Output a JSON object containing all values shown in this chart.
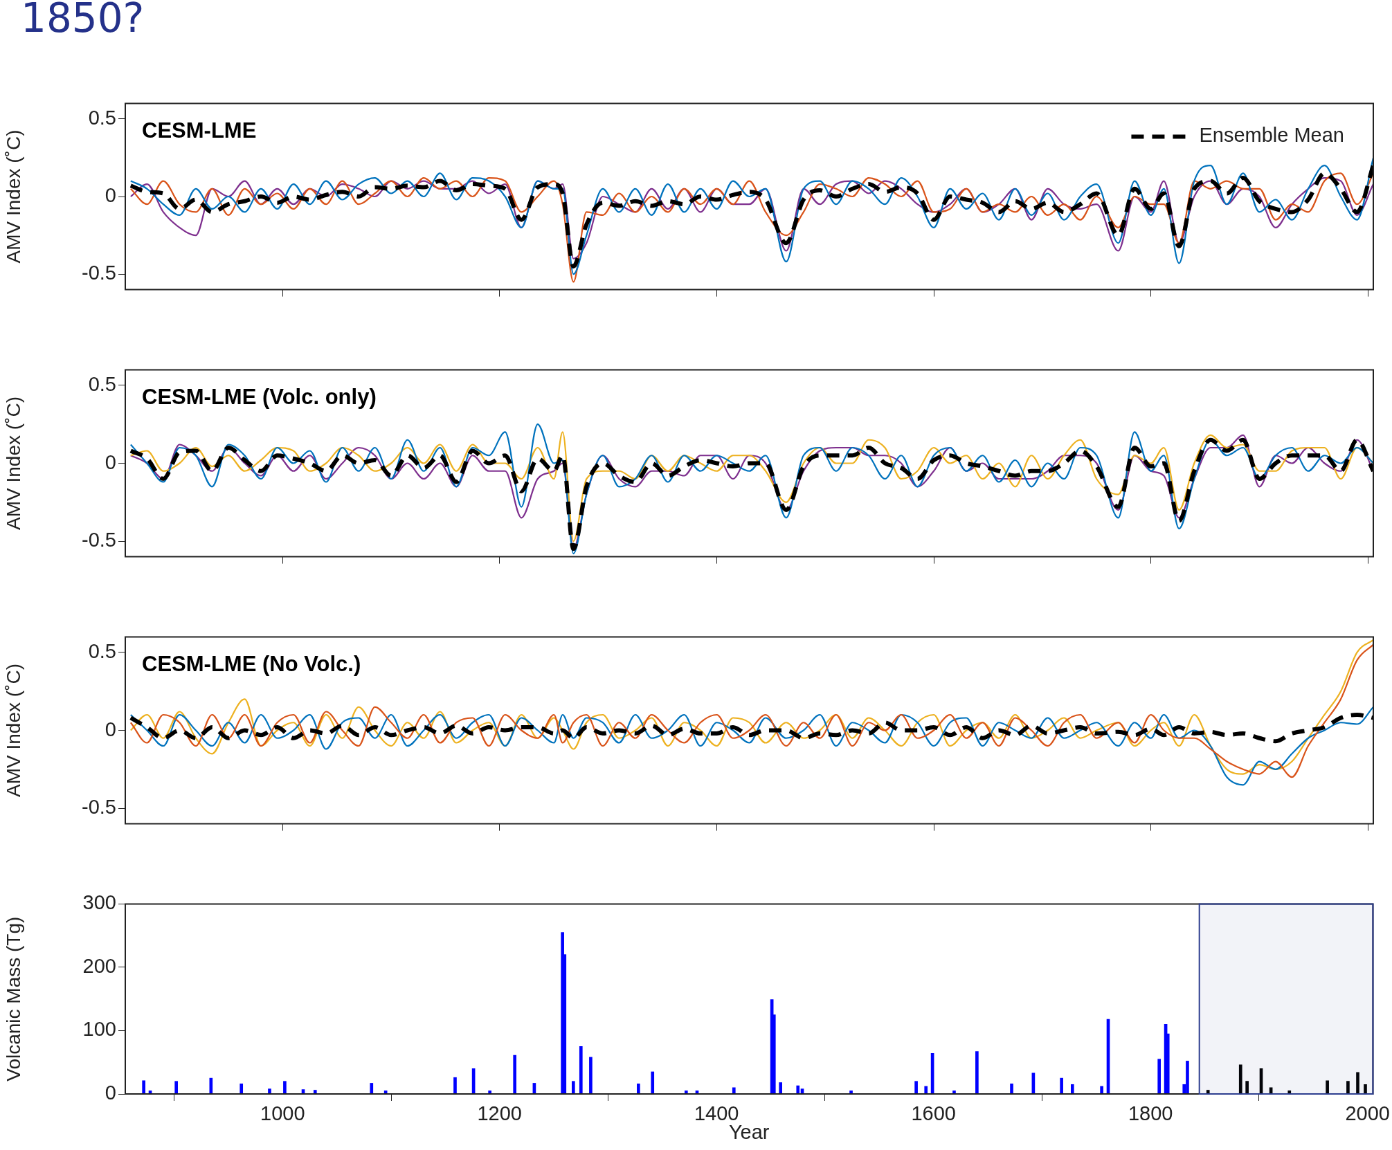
{
  "chart_data": [
    {
      "type": "line",
      "title": "CESM-LME",
      "ylabel": "AMV Index (˚C)",
      "annotations": [
        "1850?"
      ],
      "legend": "top right",
      "grid": false,
      "tick_labels": "y",
      "xlim": [
        855,
        2005
      ],
      "xticks": [
        {
          "value": 1000,
          "label": null
        },
        {
          "value": 1200,
          "label": null
        },
        {
          "value": 1400,
          "label": null
        },
        {
          "value": 1600,
          "label": null
        },
        {
          "value": 1800,
          "label": null
        },
        {
          "value": 2000,
          "label": null
        }
      ],
      "ylim": [
        -0.6,
        0.6
      ],
      "yticks": [
        -0.5,
        0,
        0.5
      ],
      "x": [
        860,
        875,
        890,
        905,
        920,
        935,
        950,
        965,
        980,
        995,
        1010,
        1025,
        1040,
        1055,
        1070,
        1085,
        1100,
        1115,
        1130,
        1145,
        1160,
        1175,
        1190,
        1205,
        1220,
        1235,
        1250,
        1258,
        1268,
        1280,
        1295,
        1310,
        1325,
        1340,
        1355,
        1370,
        1385,
        1400,
        1415,
        1430,
        1445,
        1464,
        1480,
        1495,
        1510,
        1525,
        1540,
        1555,
        1570,
        1585,
        1600,
        1615,
        1630,
        1645,
        1660,
        1675,
        1690,
        1705,
        1720,
        1735,
        1750,
        1770,
        1785,
        1800,
        1812,
        1826,
        1840,
        1855,
        1870,
        1885,
        1900,
        1915,
        1930,
        1945,
        1960,
        1975,
        1990,
        2005
      ],
      "series": [
        {
          "color": "#0072bd",
          "values": [
            0.1,
            0.05,
            -0.05,
            -0.12,
            0.05,
            -0.08,
            0,
            -0.1,
            0.05,
            -0.08,
            0.08,
            -0.05,
            0.1,
            -0.02,
            0.08,
            0.12,
            0.02,
            0.1,
            0,
            0.15,
            -0.02,
            0.12,
            0.1,
            0,
            -0.2,
            0.1,
            0.05,
            0.05,
            -0.5,
            -0.25,
            0.05,
            -0.1,
            0.05,
            -0.12,
            0.08,
            -0.1,
            0.05,
            -0.08,
            0.1,
            0,
            0.05,
            -0.42,
            0.05,
            0.1,
            -0.05,
            0.1,
            0.05,
            -0.05,
            0.12,
            0,
            -0.2,
            0.05,
            -0.08,
            0.02,
            -0.15,
            0.05,
            -0.12,
            0.02,
            -0.15,
            0,
            0.08,
            -0.3,
            0.1,
            -0.12,
            0.05,
            -0.43,
            0.1,
            0.2,
            -0.05,
            0.15,
            -0.1,
            -0.02,
            -0.15,
            0.05,
            0.2,
            0,
            -0.15,
            0.25
          ]
        },
        {
          "color": "#d95319",
          "values": [
            0.05,
            -0.05,
            0.1,
            -0.05,
            -0.1,
            0.05,
            -0.12,
            0.05,
            -0.05,
            0.02,
            -0.08,
            0.05,
            -0.05,
            0.1,
            -0.05,
            0.02,
            0.1,
            0,
            0.12,
            0.05,
            0.1,
            0,
            0.12,
            0.1,
            -0.1,
            0,
            0.1,
            -0.05,
            -0.55,
            -0.1,
            -0.12,
            0.02,
            -0.1,
            0,
            -0.1,
            0.05,
            -0.05,
            0.05,
            -0.05,
            0.1,
            -0.1,
            -0.25,
            -0.1,
            0.08,
            0.05,
            0,
            0.12,
            0.08,
            0,
            0.1,
            -0.1,
            -0.08,
            0.05,
            -0.1,
            -0.05,
            -0.1,
            0,
            -0.12,
            -0.05,
            -0.15,
            0,
            -0.2,
            0,
            -0.05,
            -0.05,
            -0.3,
            0.1,
            0.05,
            0.1,
            0.05,
            0.05,
            -0.15,
            -0.05,
            -0.1,
            0.1,
            0.15,
            -0.05,
            0.15
          ]
        },
        {
          "color": "#7e2f8e",
          "values": [
            0,
            0.08,
            -0.1,
            -0.2,
            -0.25,
            0.05,
            0,
            0.1,
            -0.05,
            0.05,
            -0.05,
            0.05,
            0,
            0.08,
            0.05,
            0,
            0.1,
            0.05,
            0.1,
            0.05,
            0.05,
            0.1,
            0.02,
            0.08,
            -0.2,
            0.1,
            0.05,
            0.08,
            -0.4,
            -0.3,
            0,
            -0.05,
            -0.1,
            0.05,
            -0.08,
            0.05,
            -0.1,
            0.05,
            -0.05,
            -0.05,
            0.05,
            -0.35,
            0.05,
            -0.05,
            0.08,
            0.1,
            0.02,
            0.1,
            0.05,
            -0.05,
            -0.1,
            -0.05,
            0.05,
            -0.1,
            -0.05,
            0.05,
            -0.15,
            0.05,
            -0.05,
            -0.08,
            -0.05,
            -0.35,
            0,
            -0.1,
            0.1,
            -0.3,
            0,
            0.1,
            -0.05,
            0.05,
            0,
            -0.2,
            -0.05,
            0.05,
            0.12,
            0.1,
            -0.12,
            0.08
          ]
        },
        {
          "name": "Ensemble Mean",
          "color": "#000000",
          "line_style": "dashed",
          "values": [
            0.07,
            0.03,
            0.02,
            -0.08,
            -0.02,
            -0.1,
            -0.05,
            -0.03,
            0,
            -0.04,
            0,
            -0.02,
            0.01,
            0.03,
            0,
            0.06,
            0.05,
            0.07,
            0.06,
            0.1,
            0.04,
            0.08,
            0.07,
            0.05,
            -0.15,
            0.06,
            0.08,
            0.02,
            -0.45,
            -0.18,
            -0.04,
            -0.06,
            -0.03,
            -0.06,
            -0.03,
            -0.05,
            0,
            -0.02,
            0.01,
            0.03,
            -0.02,
            -0.3,
            -0.02,
            0.04,
            0,
            0.05,
            0.08,
            0.03,
            0.06,
            0.02,
            -0.15,
            0,
            -0.02,
            -0.04,
            -0.1,
            -0.03,
            -0.08,
            -0.04,
            -0.1,
            -0.05,
            0.02,
            -0.25,
            0.05,
            -0.08,
            0.02,
            -0.32,
            0.05,
            0.1,
            0.02,
            0.12,
            -0.03,
            -0.08,
            -0.1,
            -0.02,
            0.15,
            0.05,
            -0.1,
            0.2
          ]
        }
      ]
    },
    {
      "type": "line",
      "title": "CESM-LME (Volc. only)",
      "ylabel": "AMV Index (˚C)",
      "grid": false,
      "tick_labels": "y",
      "xlim": [
        855,
        2005
      ],
      "xticks": [
        {
          "value": 1000,
          "label": null
        },
        {
          "value": 1200,
          "label": null
        },
        {
          "value": 1400,
          "label": null
        },
        {
          "value": 1600,
          "label": null
        },
        {
          "value": 1800,
          "label": null
        },
        {
          "value": 2000,
          "label": null
        }
      ],
      "ylim": [
        -0.6,
        0.6
      ],
      "yticks": [
        -0.5,
        0,
        0.5
      ],
      "x": [
        860,
        875,
        890,
        905,
        920,
        935,
        950,
        965,
        980,
        995,
        1010,
        1025,
        1040,
        1055,
        1070,
        1085,
        1100,
        1115,
        1130,
        1145,
        1160,
        1175,
        1190,
        1205,
        1220,
        1235,
        1250,
        1258,
        1268,
        1280,
        1295,
        1310,
        1325,
        1340,
        1355,
        1370,
        1385,
        1400,
        1415,
        1430,
        1445,
        1464,
        1480,
        1495,
        1510,
        1525,
        1540,
        1555,
        1570,
        1585,
        1600,
        1615,
        1630,
        1645,
        1660,
        1675,
        1690,
        1705,
        1720,
        1735,
        1750,
        1770,
        1785,
        1800,
        1812,
        1826,
        1840,
        1855,
        1870,
        1885,
        1900,
        1915,
        1930,
        1945,
        1960,
        1975,
        1990,
        2005
      ],
      "series": [
        {
          "color": "#0072bd",
          "values": [
            0.12,
            0,
            -0.12,
            0.1,
            0.05,
            -0.15,
            0.12,
            0.05,
            -0.1,
            0.1,
            0,
            0.08,
            -0.12,
            0.1,
            -0.05,
            0.1,
            -0.1,
            0.15,
            -0.05,
            0.1,
            -0.15,
            0.1,
            0.05,
            0.2,
            -0.28,
            0.25,
            0,
            0.02,
            -0.58,
            -0.2,
            0.05,
            -0.15,
            -0.1,
            0.05,
            -0.12,
            0.05,
            -0.05,
            0.05,
            0,
            -0.05,
            0.05,
            -0.35,
            0.05,
            0.1,
            -0.05,
            0.1,
            0.05,
            -0.1,
            0.05,
            -0.15,
            0.05,
            0.1,
            -0.05,
            0.05,
            -0.12,
            0.02,
            -0.15,
            0,
            -0.1,
            0.1,
            0.05,
            -0.35,
            0.2,
            -0.05,
            0.05,
            -0.42,
            -0.1,
            0.15,
            0.05,
            0.1,
            -0.1,
            0.05,
            0.1,
            -0.05,
            0.05,
            0,
            0.1,
            0
          ]
        },
        {
          "color": "#edb120",
          "values": [
            0.05,
            0.08,
            -0.05,
            0,
            0.1,
            -0.02,
            0.05,
            -0.05,
            0.02,
            0.1,
            0.08,
            -0.05,
            0,
            0.1,
            0.05,
            -0.05,
            0,
            0.1,
            0,
            0.12,
            -0.05,
            0.12,
            0,
            0,
            -0.1,
            0.1,
            -0.1,
            0.2,
            -0.5,
            -0.1,
            -0.05,
            -0.05,
            -0.1,
            0.05,
            -0.05,
            0.05,
            0,
            -0.05,
            0.05,
            0.05,
            -0.05,
            -0.25,
            0,
            0.1,
            0,
            0,
            0.15,
            0.1,
            -0.1,
            -0.05,
            0.1,
            0,
            0.05,
            -0.1,
            0,
            -0.15,
            0.05,
            -0.1,
            0.05,
            0.15,
            -0.1,
            -0.2,
            0.05,
            0,
            0.1,
            -0.3,
            0,
            0.18,
            0.1,
            0.12,
            -0.05,
            -0.05,
            0.08,
            0.1,
            0.1,
            -0.1,
            0.1,
            0
          ]
        },
        {
          "color": "#7e2f8e",
          "values": [
            0.05,
            0,
            -0.1,
            0.12,
            0.05,
            -0.05,
            0.1,
            0,
            -0.08,
            0.05,
            -0.05,
            0.05,
            -0.1,
            0,
            0.1,
            0.05,
            -0.1,
            0,
            -0.1,
            0,
            -0.15,
            0.05,
            -0.05,
            -0.05,
            -0.35,
            -0.1,
            -0.05,
            0,
            -0.55,
            -0.2,
            0.05,
            -0.1,
            -0.15,
            -0.05,
            -0.05,
            -0.08,
            0.05,
            0.05,
            -0.1,
            0.05,
            0,
            -0.3,
            -0.05,
            0.08,
            0.1,
            0.1,
            0.05,
            0.05,
            0,
            -0.15,
            -0.05,
            0.1,
            -0.05,
            0,
            -0.1,
            -0.1,
            -0.1,
            -0.05,
            0.05,
            0.05,
            0,
            -0.3,
            0.05,
            -0.05,
            -0.08,
            -0.35,
            -0.1,
            0.1,
            0.1,
            0.18,
            -0.15,
            0.05,
            0,
            0.1,
            0,
            -0.05,
            0.15,
            -0.05
          ]
        },
        {
          "color": "#000000",
          "line_style": "dashed",
          "values": [
            0.08,
            0.03,
            -0.1,
            0.07,
            0.08,
            -0.05,
            0.1,
            0.02,
            -0.05,
            0.05,
            0.03,
            0,
            -0.05,
            0.05,
            0,
            0.02,
            -0.08,
            0.05,
            -0.03,
            0.05,
            -0.12,
            0.08,
            0,
            0.05,
            -0.18,
            0.03,
            -0.05,
            0.05,
            -0.55,
            -0.15,
            0,
            -0.08,
            -0.12,
            0,
            -0.08,
            -0.02,
            0.02,
            0,
            -0.02,
            0,
            0,
            -0.3,
            -0.02,
            0.05,
            0.05,
            0.05,
            0.1,
            0,
            -0.03,
            -0.1,
            0.02,
            0.05,
            0,
            -0.02,
            -0.05,
            -0.08,
            -0.05,
            -0.05,
            0,
            0.08,
            -0.02,
            -0.28,
            0.1,
            -0.02,
            0,
            -0.37,
            -0.05,
            0.15,
            0.08,
            0.15,
            -0.1,
            0,
            0.05,
            0.05,
            0.05,
            -0.05,
            0.15,
            -0.05
          ]
        }
      ]
    },
    {
      "type": "line",
      "title": "CESM-LME (No Volc.)",
      "ylabel": "AMV Index (˚C)",
      "grid": false,
      "tick_labels": "y",
      "xlim": [
        855,
        2005
      ],
      "xticks": [
        {
          "value": 1000,
          "label": null
        },
        {
          "value": 1200,
          "label": null
        },
        {
          "value": 1400,
          "label": null
        },
        {
          "value": 1600,
          "label": null
        },
        {
          "value": 1800,
          "label": null
        },
        {
          "value": 2000,
          "label": null
        }
      ],
      "ylim": [
        -0.6,
        0.6
      ],
      "yticks": [
        -0.5,
        0,
        0.5
      ],
      "x": [
        860,
        875,
        890,
        905,
        920,
        935,
        950,
        965,
        980,
        995,
        1010,
        1025,
        1040,
        1055,
        1070,
        1085,
        1100,
        1115,
        1130,
        1145,
        1160,
        1175,
        1190,
        1205,
        1220,
        1235,
        1250,
        1258,
        1268,
        1280,
        1295,
        1310,
        1325,
        1340,
        1355,
        1370,
        1385,
        1400,
        1415,
        1430,
        1445,
        1464,
        1480,
        1495,
        1510,
        1525,
        1540,
        1555,
        1570,
        1585,
        1600,
        1615,
        1630,
        1645,
        1660,
        1675,
        1690,
        1705,
        1720,
        1735,
        1750,
        1770,
        1785,
        1800,
        1812,
        1826,
        1840,
        1855,
        1870,
        1885,
        1900,
        1915,
        1930,
        1945,
        1960,
        1975,
        1990,
        2005
      ],
      "series": [
        {
          "color": "#d95319",
          "values": [
            0.05,
            -0.08,
            0.1,
            0.05,
            -0.1,
            0.1,
            -0.05,
            0.1,
            -0.1,
            0.05,
            0.1,
            -0.08,
            0.12,
            0,
            -0.1,
            0.15,
            0.05,
            -0.05,
            0.1,
            -0.08,
            0.05,
            0.08,
            -0.1,
            0.1,
            0,
            -0.05,
            0.1,
            -0.08,
            0.05,
            0.1,
            -0.1,
            0.05,
            -0.05,
            0.1,
            0,
            -0.08,
            0.05,
            0.1,
            -0.05,
            0,
            0.1,
            -0.1,
            0.05,
            -0.05,
            0.1,
            -0.1,
            0.05,
            0,
            0.1,
            -0.05,
            0,
            0.1,
            -0.05,
            0.05,
            -0.1,
            0.08,
            0,
            -0.1,
            0.05,
            0.1,
            -0.05,
            0.05,
            -0.08,
            0.1,
            0,
            -0.05,
            -0.05,
            -0.12,
            -0.2,
            -0.25,
            -0.28,
            -0.2,
            -0.3,
            -0.1,
            0.05,
            0.2,
            0.45,
            0.55
          ]
        },
        {
          "color": "#0072bd",
          "values": [
            0.1,
            0,
            -0.1,
            0.1,
            0,
            -0.1,
            0.05,
            -0.08,
            0.1,
            -0.05,
            0,
            0.1,
            -0.12,
            0.05,
            0.08,
            -0.05,
            0.1,
            -0.1,
            0,
            0.1,
            -0.05,
            0.05,
            0.1,
            -0.1,
            0.08,
            0,
            -0.08,
            0.1,
            -0.05,
            0.08,
            0.05,
            -0.08,
            0.1,
            -0.05,
            0,
            0.1,
            -0.1,
            0.05,
            0,
            -0.08,
            0.08,
            -0.05,
            0,
            0.1,
            -0.1,
            0.05,
            0,
            -0.08,
            0.1,
            0.05,
            -0.1,
            0.05,
            0.08,
            -0.1,
            0.05,
            0,
            -0.05,
            0.08,
            -0.05,
            0,
            0.05,
            -0.1,
            0.05,
            -0.05,
            0.1,
            -0.05,
            0,
            -0.1,
            -0.3,
            -0.35,
            -0.2,
            -0.25,
            -0.15,
            -0.05,
            0,
            0.05,
            0.04,
            0.15
          ]
        },
        {
          "color": "#edb120",
          "values": [
            0,
            0.1,
            -0.05,
            0.12,
            -0.05,
            -0.15,
            0.05,
            0.2,
            -0.1,
            0,
            0.05,
            -0.1,
            0.1,
            -0.05,
            0.15,
            0,
            -0.1,
            0.05,
            -0.05,
            0.12,
            -0.08,
            0,
            0.05,
            -0.1,
            0.1,
            -0.05,
            0.08,
            0,
            -0.12,
            0.05,
            0.1,
            -0.05,
            0,
            0.08,
            -0.1,
            0.05,
            0,
            -0.1,
            0.08,
            0.05,
            -0.08,
            0.05,
            -0.05,
            0,
            0.1,
            -0.05,
            0.08,
            0,
            -0.1,
            0.05,
            0.1,
            -0.1,
            0,
            0.05,
            -0.05,
            0.1,
            -0.05,
            0,
            0.08,
            -0.05,
            0,
            0.05,
            -0.1,
            0,
            0.05,
            -0.1,
            0.1,
            -0.1,
            -0.25,
            -0.28,
            -0.22,
            -0.25,
            -0.2,
            -0.05,
            0.1,
            0.25,
            0.5,
            0.58
          ]
        },
        {
          "color": "#000000",
          "line_style": "dashed",
          "values": [
            0.08,
            0.02,
            -0.05,
            0,
            -0.05,
            0.02,
            -0.05,
            0,
            -0.03,
            0.02,
            -0.05,
            0,
            -0.02,
            0.03,
            -0.03,
            0.02,
            -0.03,
            0,
            0.02,
            -0.02,
            0.03,
            -0.02,
            0.02,
            0,
            0.02,
            0.02,
            -0.02,
            0,
            -0.05,
            0.02,
            -0.02,
            0,
            -0.02,
            0.03,
            -0.03,
            0.01,
            -0.02,
            -0.02,
            0.02,
            -0.03,
            0,
            0,
            -0.05,
            -0.02,
            -0.03,
            0,
            -0.02,
            0.05,
            0,
            0,
            0.02,
            -0.03,
            0.02,
            -0.05,
            0,
            -0.03,
            0.03,
            -0.02,
            0,
            0.02,
            -0.02,
            -0.01,
            -0.03,
            0.01,
            -0.03,
            0.02,
            -0.02,
            -0.01,
            -0.03,
            -0.02,
            -0.05,
            -0.07,
            -0.02,
            0,
            0.02,
            0.08,
            0.1,
            0.08
          ]
        }
      ]
    },
    {
      "type": "bar",
      "xlabel": "Year",
      "ylabel": "Volcanic Mass (Tg)",
      "grid": false,
      "bands": [
        {
          "axis": "x",
          "from": 1845,
          "to": 2005,
          "color": "#2d3e8f"
        }
      ],
      "xlim": [
        855,
        2005
      ],
      "xticks": [
        1000,
        1200,
        1400,
        1600,
        1800,
        2000
      ],
      "ylim": [
        0,
        300
      ],
      "yticks": [
        0,
        100,
        200,
        300
      ],
      "series": [
        {
          "color": "#0000ff",
          "x": [
            872,
            878,
            902,
            934,
            962,
            988,
            1002,
            1019,
            1030,
            1082,
            1095,
            1159,
            1176,
            1191,
            1214,
            1232,
            1258,
            1260,
            1268,
            1275,
            1284,
            1328,
            1341,
            1372,
            1382,
            1416,
            1451,
            1453,
            1459,
            1475,
            1479,
            1524,
            1584,
            1593,
            1599,
            1619,
            1640,
            1672,
            1692,
            1718,
            1728,
            1755,
            1761,
            1808,
            1814,
            1816,
            1831,
            1834
          ],
          "values": [
            21,
            5,
            20,
            25,
            16,
            8,
            20,
            7,
            6,
            17,
            5,
            26,
            40,
            5,
            61,
            17,
            255,
            220,
            20,
            75,
            58,
            16,
            35,
            5,
            5,
            10,
            149,
            125,
            18,
            13,
            8,
            5,
            20,
            12,
            64,
            5,
            67,
            16,
            33,
            25,
            15,
            12,
            118,
            55,
            110,
            95,
            15,
            52
          ]
        },
        {
          "color": "#000000",
          "x": [
            1853,
            1883,
            1889,
            1902,
            1911,
            1928,
            1963,
            1982,
            1991,
            1998
          ],
          "values": [
            6,
            46,
            20,
            40,
            10,
            5,
            21,
            20,
            34,
            15
          ]
        }
      ]
    }
  ]
}
